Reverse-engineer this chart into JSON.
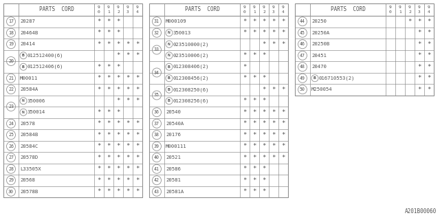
{
  "bg_color": "#ffffff",
  "text_color": "#505050",
  "line_color": "#909090",
  "footnote": "A201B00060",
  "tables": [
    {
      "rows": [
        [
          "17",
          "20287",
          "*",
          "*",
          "*",
          "",
          ""
        ],
        [
          "18",
          "20464B",
          "*",
          "*",
          "*",
          "",
          ""
        ],
        [
          "19",
          "20414",
          "*",
          "*",
          "*",
          "*",
          "*"
        ],
        [
          "20",
          "B012512400(6)",
          "",
          "",
          "*",
          "*",
          "*"
        ],
        [
          "20",
          "B012512406(6)",
          "*",
          "*",
          "*",
          "",
          ""
        ],
        [
          "21",
          "M00011",
          "*",
          "*",
          "*",
          "*",
          "*"
        ],
        [
          "22",
          "20584A",
          "*",
          "*",
          "*",
          "*",
          "*"
        ],
        [
          "23",
          "N350006",
          "",
          "",
          "*",
          "*",
          "*"
        ],
        [
          "23",
          "N350014",
          "*",
          "*",
          "*",
          "",
          ""
        ],
        [
          "24",
          "20578",
          "*",
          "*",
          "*",
          "*",
          "*"
        ],
        [
          "25",
          "20584B",
          "*",
          "*",
          "*",
          "*",
          "*"
        ],
        [
          "26",
          "20584C",
          "*",
          "*",
          "*",
          "*",
          "*"
        ],
        [
          "27",
          "20578D",
          "*",
          "*",
          "*",
          "*",
          "*"
        ],
        [
          "28",
          "L33505X",
          "*",
          "*",
          "*",
          "*",
          "*"
        ],
        [
          "29",
          "20568",
          "*",
          "*",
          "*",
          "*",
          "*"
        ],
        [
          "30",
          "20578B",
          "*",
          "*",
          "*",
          "*",
          "*"
        ]
      ]
    },
    {
      "rows": [
        [
          "31",
          "M000109",
          "*",
          "*",
          "*",
          "*",
          "*"
        ],
        [
          "32",
          "N350013",
          "*",
          "*",
          "*",
          "*",
          "*"
        ],
        [
          "33",
          "N023510000(2)",
          "",
          "",
          "*",
          "*",
          "*"
        ],
        [
          "33",
          "N023510006(2)",
          "*",
          "*",
          "*",
          "",
          ""
        ],
        [
          "34",
          "B012308406(2)",
          "*",
          "",
          "",
          "",
          ""
        ],
        [
          "34",
          "B012308456(2)",
          "*",
          "*",
          "*",
          "",
          ""
        ],
        [
          "35",
          "B012308250(6)",
          "",
          "",
          "*",
          "*",
          "*"
        ],
        [
          "35",
          "B012308256(6)",
          "*",
          "*",
          "*",
          "",
          ""
        ],
        [
          "36",
          "20540",
          "*",
          "*",
          "*",
          "*",
          "*"
        ],
        [
          "37",
          "20540A",
          "*",
          "*",
          "*",
          "*",
          "*"
        ],
        [
          "38",
          "20176",
          "*",
          "*",
          "*",
          "*",
          "*"
        ],
        [
          "39",
          "M000111",
          "*",
          "*",
          "*",
          "*",
          "*"
        ],
        [
          "40",
          "20521",
          "*",
          "*",
          "*",
          "*",
          "*"
        ],
        [
          "41",
          "20586",
          "*",
          "*",
          "*",
          "",
          ""
        ],
        [
          "42",
          "20581",
          "*",
          "*",
          "*",
          "",
          ""
        ],
        [
          "43",
          "20581A",
          "*",
          "*",
          "*",
          "",
          ""
        ]
      ]
    },
    {
      "rows": [
        [
          "44",
          "20250",
          "",
          "",
          "*",
          "*",
          "*"
        ],
        [
          "45",
          "20250A",
          "",
          "",
          "",
          "*",
          "*"
        ],
        [
          "46",
          "20250B",
          "",
          "",
          "",
          "*",
          "*"
        ],
        [
          "47",
          "20451",
          "",
          "",
          "",
          "*",
          "*"
        ],
        [
          "48",
          "20470",
          "",
          "",
          "",
          "*",
          "*"
        ],
        [
          "49",
          "B016710553(2)",
          "",
          "",
          "",
          "*",
          "*"
        ],
        [
          "50",
          "M250054",
          "",
          "",
          "",
          "*",
          "*"
        ]
      ]
    }
  ]
}
